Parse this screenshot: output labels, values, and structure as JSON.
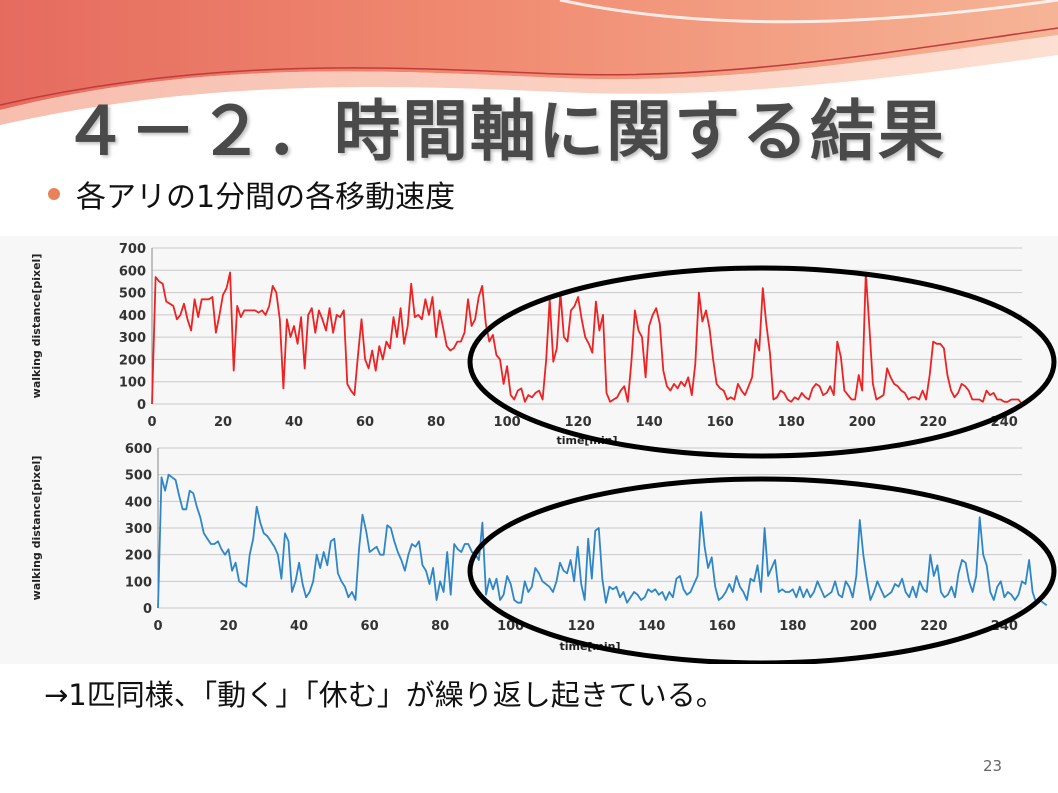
{
  "slide": {
    "title": "４－２．時間軸に関する結果",
    "bullet": "各アリの1分間の各移動速度",
    "conclusion": "→1匹同様、「動く」「休む」が繰り返し起きている。",
    "page_number": "23",
    "accent_color": "#e8825a"
  },
  "chart_data": [
    {
      "type": "line",
      "ylabel": "walking distance[pixel]",
      "xlabel": "time[min]",
      "xlim": [
        0,
        245
      ],
      "ylim": [
        0,
        700
      ],
      "x_ticks": [
        0,
        20,
        40,
        60,
        80,
        100,
        120,
        140,
        160,
        180,
        200,
        220,
        240
      ],
      "y_ticks": [
        0,
        100,
        200,
        300,
        400,
        500,
        600,
        700
      ],
      "grid": true,
      "color": "#ee2222",
      "values": [
        0,
        570,
        550,
        540,
        460,
        450,
        440,
        380,
        400,
        450,
        380,
        330,
        470,
        390,
        470,
        470,
        470,
        480,
        320,
        400,
        490,
        520,
        590,
        150,
        440,
        390,
        420,
        420,
        420,
        420,
        410,
        420,
        400,
        440,
        530,
        500,
        380,
        70,
        380,
        300,
        350,
        270,
        390,
        160,
        400,
        430,
        320,
        420,
        380,
        330,
        430,
        320,
        400,
        390,
        420,
        90,
        60,
        40,
        220,
        380,
        200,
        160,
        240,
        150,
        260,
        200,
        280,
        250,
        390,
        300,
        430,
        270,
        350,
        540,
        390,
        400,
        380,
        470,
        400,
        480,
        300,
        420,
        340,
        260,
        240,
        250,
        280,
        280,
        320,
        470,
        350,
        380,
        480,
        530,
        360,
        280,
        310,
        220,
        200,
        90,
        170,
        40,
        20,
        60,
        70,
        10,
        40,
        30,
        50,
        60,
        20,
        200,
        470,
        190,
        250,
        500,
        300,
        280,
        420,
        440,
        480,
        380,
        300,
        270,
        230,
        460,
        330,
        400,
        50,
        10,
        20,
        30,
        60,
        80,
        10,
        190,
        420,
        330,
        300,
        120,
        350,
        400,
        430,
        360,
        150,
        80,
        60,
        90,
        70,
        100,
        80,
        120,
        40,
        180,
        500,
        370,
        420,
        340,
        200,
        90,
        70,
        60,
        20,
        30,
        20,
        90,
        60,
        40,
        80,
        120,
        290,
        240,
        520,
        360,
        230,
        20,
        30,
        60,
        50,
        20,
        10,
        30,
        20,
        50,
        30,
        20,
        70,
        90,
        80,
        40,
        50,
        80,
        40,
        280,
        210,
        60,
        40,
        20,
        20,
        130,
        60,
        590,
        350,
        90,
        20,
        30,
        40,
        160,
        120,
        90,
        80,
        60,
        50,
        20,
        30,
        30,
        20,
        60,
        20,
        130,
        280,
        270,
        270,
        250,
        130,
        60,
        30,
        50,
        90,
        80,
        60,
        20,
        20,
        20,
        10,
        60,
        40,
        50,
        20,
        20,
        10,
        10,
        20,
        20,
        20,
        0
      ]
    },
    {
      "type": "line",
      "ylabel": "walking distance[pixel]",
      "xlabel": "time[min]",
      "xlim": [
        0,
        245
      ],
      "ylim": [
        0,
        600
      ],
      "x_ticks": [
        0,
        20,
        40,
        60,
        80,
        100,
        120,
        140,
        160,
        180,
        200,
        220,
        240
      ],
      "y_ticks": [
        0,
        100,
        200,
        300,
        400,
        500,
        600
      ],
      "grid": true,
      "color": "#2e86c8",
      "values": [
        0,
        490,
        440,
        500,
        490,
        480,
        420,
        370,
        370,
        440,
        430,
        380,
        340,
        280,
        260,
        240,
        240,
        250,
        220,
        200,
        220,
        140,
        170,
        100,
        90,
        80,
        200,
        260,
        380,
        320,
        280,
        270,
        250,
        230,
        200,
        110,
        280,
        250,
        60,
        100,
        170,
        90,
        40,
        60,
        100,
        200,
        150,
        210,
        160,
        250,
        260,
        130,
        100,
        80,
        40,
        60,
        30,
        220,
        350,
        290,
        210,
        220,
        230,
        200,
        200,
        310,
        300,
        250,
        210,
        180,
        140,
        200,
        240,
        230,
        250,
        160,
        140,
        90,
        150,
        30,
        100,
        60,
        210,
        50,
        240,
        220,
        210,
        240,
        240,
        210,
        200,
        180,
        320,
        50,
        110,
        70,
        110,
        30,
        50,
        120,
        90,
        30,
        20,
        20,
        100,
        60,
        80,
        150,
        130,
        100,
        90,
        80,
        60,
        100,
        170,
        140,
        130,
        180,
        100,
        230,
        90,
        30,
        260,
        110,
        290,
        300,
        110,
        20,
        80,
        70,
        80,
        40,
        60,
        20,
        40,
        60,
        50,
        30,
        40,
        70,
        60,
        70,
        50,
        60,
        30,
        60,
        40,
        110,
        120,
        70,
        50,
        60,
        90,
        120,
        360,
        230,
        150,
        190,
        80,
        30,
        40,
        60,
        90,
        60,
        120,
        80,
        60,
        30,
        110,
        100,
        160,
        60,
        300,
        120,
        150,
        180,
        60,
        70,
        60,
        60,
        70,
        40,
        80,
        40,
        70,
        40,
        60,
        100,
        70,
        40,
        50,
        60,
        100,
        50,
        40,
        100,
        80,
        40,
        120,
        330,
        200,
        110,
        30,
        60,
        100,
        70,
        40,
        50,
        60,
        90,
        80,
        110,
        60,
        40,
        80,
        40,
        100,
        70,
        60,
        200,
        120,
        160,
        60,
        40,
        50,
        80,
        40,
        130,
        180,
        170,
        100,
        60,
        120,
        340,
        200,
        160,
        60,
        30,
        80,
        100,
        40,
        60,
        50,
        30,
        50,
        100,
        90,
        180,
        60,
        20,
        30,
        20,
        10
      ]
    }
  ]
}
